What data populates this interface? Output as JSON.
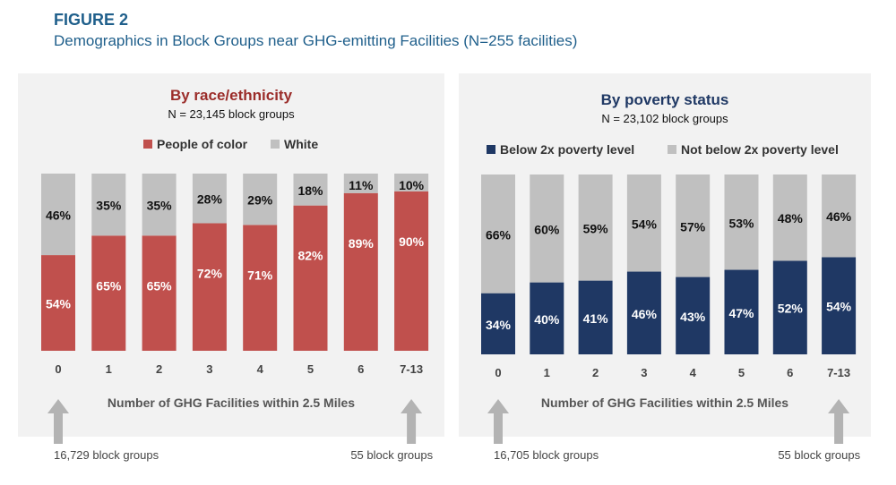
{
  "figure": {
    "label": "FIGURE 2",
    "title": "Demographics in Block Groups near GHG-emitting Facilities (N=255 facilities)"
  },
  "chart_data": [
    {
      "type": "bar",
      "stacked": true,
      "title": "By race/ethnicity",
      "subtitle": "N = 23,145 block groups",
      "xlabel": "Number of GHG Facilities within 2.5 Miles",
      "categories": [
        "0",
        "1",
        "2",
        "3",
        "4",
        "5",
        "6",
        "7-13"
      ],
      "series": [
        {
          "name": "People of color",
          "color": "#c0504d",
          "values": [
            54,
            65,
            65,
            72,
            71,
            82,
            89,
            90
          ]
        },
        {
          "name": "White",
          "color": "#c0c0c0",
          "values": [
            46,
            35,
            35,
            28,
            29,
            18,
            11,
            10
          ]
        }
      ],
      "ylim": [
        0,
        100
      ],
      "legend": "top",
      "annotations": {
        "left": "16,729 block groups",
        "right": "55 block groups"
      }
    },
    {
      "type": "bar",
      "stacked": true,
      "title": "By poverty status",
      "subtitle": "N = 23,102 block groups",
      "xlabel": "Number of GHG Facilities within 2.5 Miles",
      "categories": [
        "0",
        "1",
        "2",
        "3",
        "4",
        "5",
        "6",
        "7-13"
      ],
      "series": [
        {
          "name": "Below 2x poverty level",
          "color": "#1f3864",
          "values": [
            34,
            40,
            41,
            46,
            43,
            47,
            52,
            54
          ]
        },
        {
          "name": "Not below 2x poverty level",
          "color": "#c0c0c0",
          "values": [
            66,
            60,
            59,
            54,
            57,
            53,
            48,
            46
          ]
        }
      ],
      "ylim": [
        0,
        100
      ],
      "legend": "top",
      "annotations": {
        "left": "16,705 block groups",
        "right": "55 block groups"
      }
    }
  ]
}
